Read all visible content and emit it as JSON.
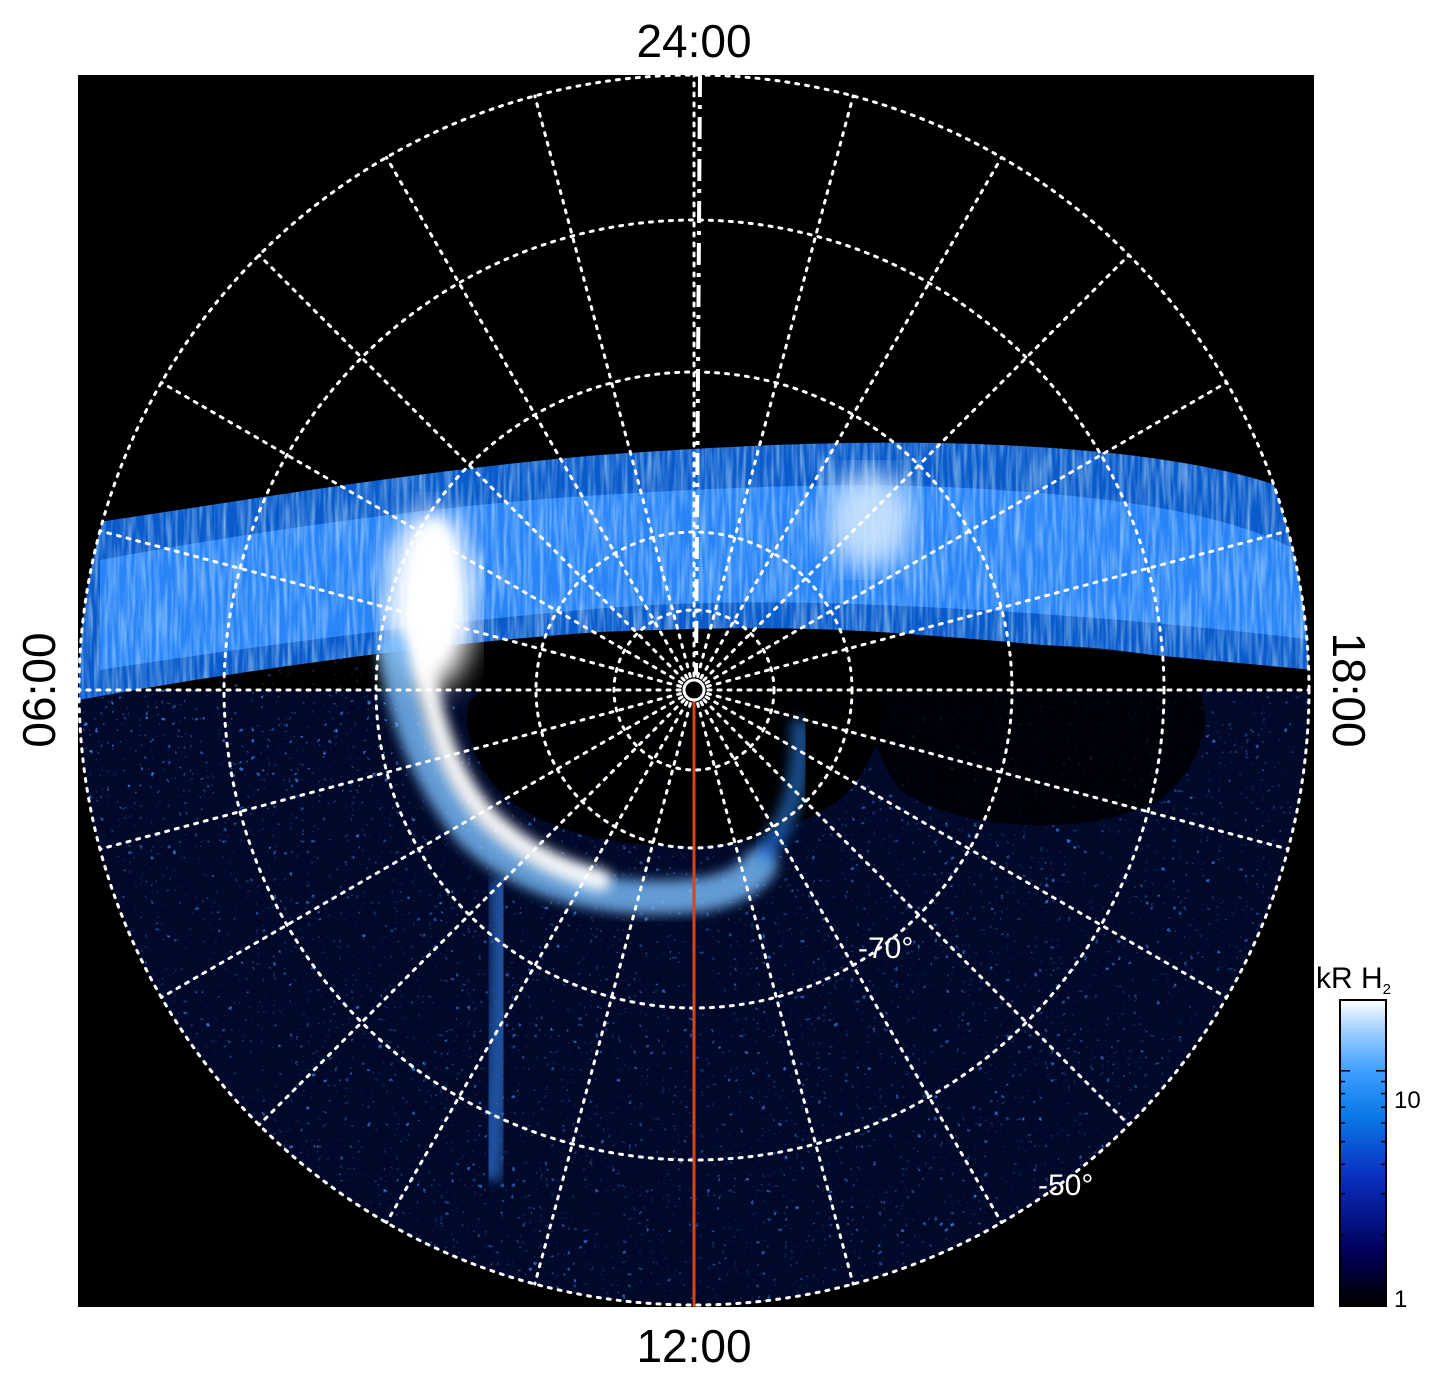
{
  "figure": {
    "local_time_labels": {
      "top": "24:00",
      "bottom": "12:00",
      "left": "06:00",
      "right": "18:00"
    },
    "latitude_labels": [
      {
        "text": "-70°",
        "latitude": -70
      },
      {
        "text": "-50°",
        "latitude": -50
      }
    ],
    "colorbar": {
      "unit_main": "kR H",
      "unit_subscript": "2",
      "scale": "log",
      "range": [
        1,
        20
      ],
      "ticks": [
        {
          "value": 1,
          "label": "1"
        },
        {
          "value": 10,
          "label": "10"
        }
      ],
      "colors": [
        "#000000",
        "#00005a",
        "#0a2fbf",
        "#0a78e6",
        "#3a9cff",
        "#9fd0ff",
        "#ffffff"
      ]
    },
    "grid": {
      "style": "dotted",
      "color": "#ffffff",
      "latitude_circles": [
        -80,
        -70,
        -60,
        -50,
        -40
      ],
      "meridian_step_hours": 1
    },
    "colors": {
      "background": "#000000",
      "midnight_meridian": "#ffffff",
      "noon_meridian": "#d9441a",
      "pole_marker": "#ffffff"
    }
  }
}
